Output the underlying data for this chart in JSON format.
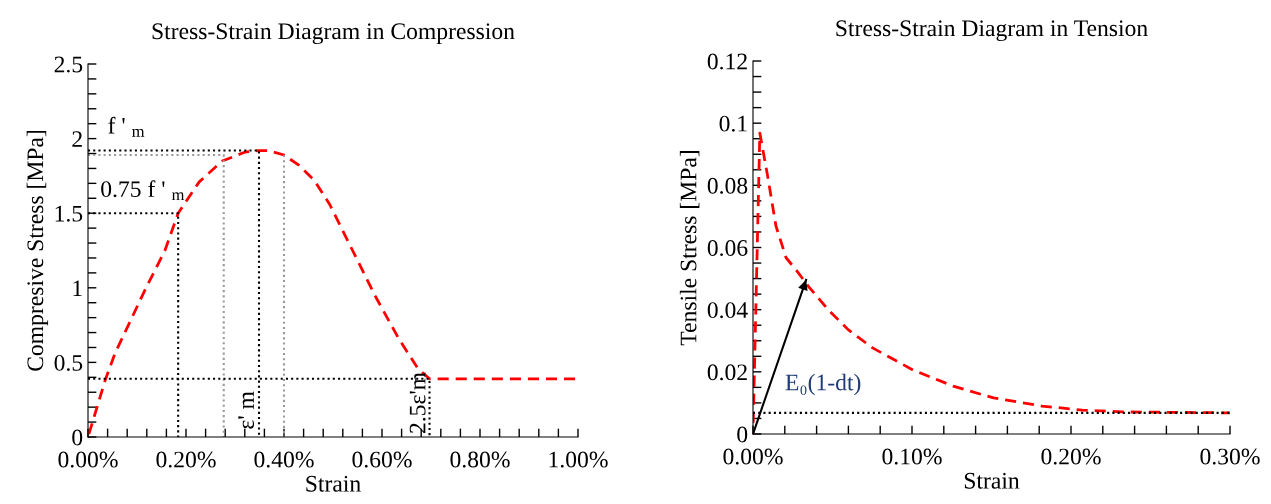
{
  "chart_data": [
    {
      "type": "line",
      "title": "Stress-Strain Diagram in Compression",
      "xlabel": "Strain",
      "ylabel": "Compresive Stress [MPa]",
      "xlim": [
        0,
        1.0
      ],
      "ylim": [
        0,
        2.5
      ],
      "xticks": [
        {
          "value": 0,
          "label": "0.00%"
        },
        {
          "value": 0.04,
          "label": null
        },
        {
          "value": 0.08,
          "label": null
        },
        {
          "value": 0.12,
          "label": null
        },
        {
          "value": 0.16,
          "label": null
        },
        {
          "value": 0.2,
          "label": "0.20%"
        },
        {
          "value": 0.24,
          "label": null
        },
        {
          "value": 0.28,
          "label": null
        },
        {
          "value": 0.32,
          "label": null
        },
        {
          "value": 0.36,
          "label": null
        },
        {
          "value": 0.4,
          "label": "0.40%"
        },
        {
          "value": 0.44,
          "label": null
        },
        {
          "value": 0.48,
          "label": null
        },
        {
          "value": 0.52,
          "label": null
        },
        {
          "value": 0.56,
          "label": null
        },
        {
          "value": 0.6,
          "label": "0.60%"
        },
        {
          "value": 0.64,
          "label": null
        },
        {
          "value": 0.68,
          "label": null
        },
        {
          "value": 0.72,
          "label": null
        },
        {
          "value": 0.76,
          "label": null
        },
        {
          "value": 0.8,
          "label": "0.80%"
        },
        {
          "value": 0.84,
          "label": null
        },
        {
          "value": 0.88,
          "label": null
        },
        {
          "value": 0.92,
          "label": null
        },
        {
          "value": 0.96,
          "label": null
        },
        {
          "value": 1.0,
          "label": "1.00%"
        }
      ],
      "yticks": [
        0,
        {
          "value": 0.1,
          "label": null
        },
        {
          "value": 0.2,
          "label": null
        },
        {
          "value": 0.3,
          "label": null
        },
        {
          "value": 0.4,
          "label": null
        },
        0.5,
        {
          "value": 0.6,
          "label": null
        },
        {
          "value": 0.7,
          "label": null
        },
        {
          "value": 0.8,
          "label": null
        },
        {
          "value": 0.9,
          "label": null
        },
        1,
        {
          "value": 1.1,
          "label": null
        },
        {
          "value": 1.2,
          "label": null
        },
        {
          "value": 1.3,
          "label": null
        },
        {
          "value": 1.4,
          "label": null
        },
        1.5,
        {
          "value": 1.6,
          "label": null
        },
        {
          "value": 1.7,
          "label": null
        },
        {
          "value": 1.8,
          "label": null
        },
        {
          "value": 1.9,
          "label": null
        },
        2,
        {
          "value": 2.1,
          "label": null
        },
        {
          "value": 2.2,
          "label": null
        },
        {
          "value": 2.3,
          "label": null
        },
        {
          "value": 2.4,
          "label": null
        },
        2.5
      ],
      "grid": false,
      "legend": false,
      "series": [
        {
          "color": "#ff0000",
          "line_style": "dashed",
          "x": [
            0,
            0.035,
            0.055,
            0.117,
            0.157,
            0.184,
            0.227,
            0.274,
            0.321,
            0.349,
            0.368,
            0.4,
            0.431,
            0.462,
            0.493,
            0.54,
            0.587,
            0.634,
            0.673,
            0.697,
            0.998
          ],
          "values": [
            0,
            0.38,
            0.56,
            0.99,
            1.25,
            1.5,
            1.71,
            1.85,
            1.91,
            1.92,
            1.92,
            1.89,
            1.82,
            1.72,
            1.56,
            1.25,
            0.94,
            0.66,
            0.46,
            0.39,
            0.39
          ]
        },
        {
          "color": "#000000",
          "line_style": "dotted",
          "x": [
            0,
            0.349,
            0.349
          ],
          "values": [
            1.92,
            1.92,
            0
          ]
        },
        {
          "color": "#999999",
          "line_style": "dotted",
          "x": [
            0,
            0.277,
            0.277
          ],
          "values": [
            1.89,
            1.89,
            0
          ]
        },
        {
          "color": "#999999",
          "line_style": "dotted",
          "x": [
            0.4,
            0.4,
            0.4
          ],
          "values": [
            1.89,
            0.95,
            0
          ]
        },
        {
          "color": "#000000",
          "line_style": "dotted",
          "x": [
            0,
            0.184,
            0.184
          ],
          "values": [
            1.5,
            1.5,
            0
          ]
        },
        {
          "color": "#000000",
          "line_style": "dotted",
          "x": [
            0,
            0.697,
            0.697
          ],
          "values": [
            0.39,
            0.39,
            0
          ]
        }
      ],
      "annotations": [
        "f ' $_{m}$",
        "0.75 f ' $_{m}$",
        "ε' m",
        "2.5ε'm"
      ]
    },
    {
      "type": "line",
      "title": "Stress-Strain Diagram in Tension",
      "xlabel": "Strain",
      "ylabel": "Tensile Stress [MPa]",
      "xlim": [
        0,
        0.3
      ],
      "ylim": [
        0,
        0.12
      ],
      "xticks": [
        {
          "value": 0,
          "label": "0.00%"
        },
        {
          "value": 0.02,
          "label": null
        },
        {
          "value": 0.04,
          "label": null
        },
        {
          "value": 0.06,
          "label": null
        },
        {
          "value": 0.08,
          "label": null
        },
        {
          "value": 0.1,
          "label": "0.10%"
        },
        {
          "value": 0.12,
          "label": null
        },
        {
          "value": 0.14,
          "label": null
        },
        {
          "value": 0.16,
          "label": null
        },
        {
          "value": 0.18,
          "label": null
        },
        {
          "value": 0.2,
          "label": "0.20%"
        },
        {
          "value": 0.22,
          "label": null
        },
        {
          "value": 0.24,
          "label": null
        },
        {
          "value": 0.26,
          "label": null
        },
        {
          "value": 0.28,
          "label": null
        },
        {
          "value": 0.3,
          "label": "0.30%"
        }
      ],
      "yticks": [
        0,
        {
          "value": 0.005,
          "label": null
        },
        {
          "value": 0.01,
          "label": null
        },
        {
          "value": 0.015,
          "label": null
        },
        0.02,
        {
          "value": 0.025,
          "label": null
        },
        {
          "value": 0.03,
          "label": null
        },
        {
          "value": 0.035,
          "label": null
        },
        0.04,
        {
          "value": 0.045,
          "label": null
        },
        {
          "value": 0.05,
          "label": null
        },
        {
          "value": 0.055,
          "label": null
        },
        0.06,
        {
          "value": 0.065,
          "label": null
        },
        {
          "value": 0.07,
          "label": null
        },
        {
          "value": 0.075,
          "label": null
        },
        0.08,
        {
          "value": 0.085,
          "label": null
        },
        {
          "value": 0.09,
          "label": null
        },
        {
          "value": 0.095,
          "label": null
        },
        0.1,
        {
          "value": 0.105,
          "label": null
        },
        {
          "value": 0.11,
          "label": null
        },
        {
          "value": 0.115,
          "label": null
        },
        0.12
      ],
      "grid": false,
      "legend": false,
      "series": [
        {
          "color": "#ff0000",
          "line_style": "dashed",
          "x": [
            0,
            0.0043,
            0.0094,
            0.0144,
            0.0208,
            0.0271,
            0.0347,
            0.0474,
            0.06,
            0.0752,
            0.1006,
            0.1259,
            0.1513,
            0.1817,
            0.207,
            0.2323,
            0.3
          ],
          "values": [
            0,
            0.0968,
            0.0824,
            0.067,
            0.0567,
            0.0528,
            0.0476,
            0.0399,
            0.0335,
            0.0277,
            0.0206,
            0.0154,
            0.0116,
            0.009,
            0.0077,
            0.0071,
            0.0068
          ]
        },
        {
          "color": "#000000",
          "line_style": "solid",
          "x": [
            0,
            0.0334
          ],
          "values": [
            0,
            0.0496
          ]
        }
      ],
      "ref_lines": [
        {
          "axis": "y",
          "value": 0.0068,
          "color": "#000000",
          "line_style": "dotted"
        }
      ],
      "annotations": [
        "E₀(1-dt)"
      ]
    }
  ]
}
